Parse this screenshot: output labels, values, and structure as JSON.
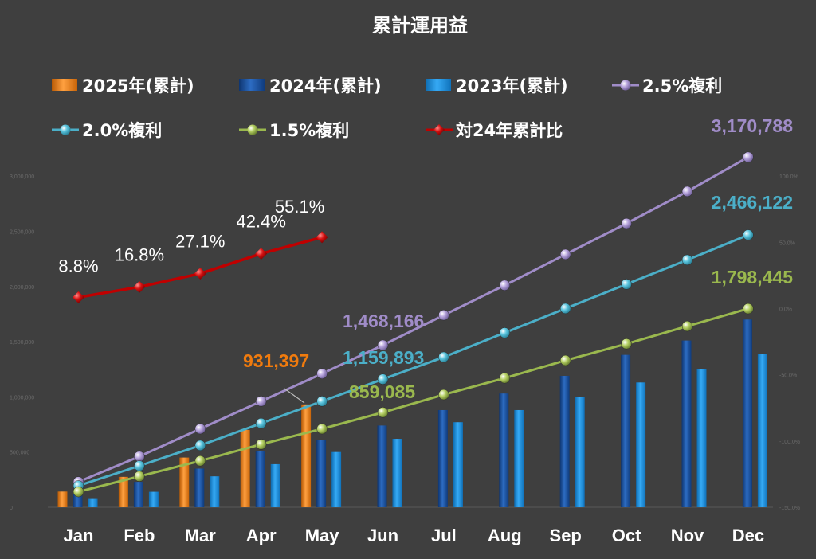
{
  "chart_data": {
    "type": "bar",
    "title": "累計運用益",
    "categories": [
      "Jan",
      "Feb",
      "Mar",
      "Apr",
      "May",
      "Jun",
      "Jul",
      "Aug",
      "Sep",
      "Oct",
      "Nov",
      "Dec"
    ],
    "legend_placement": "top",
    "grid": false,
    "ylim": [
      0,
      3000000
    ],
    "series": [
      {
        "name": "2025年(累計)",
        "kind": "bar",
        "color": "#f07b0e",
        "values": [
          142000,
          275000,
          450000,
          700000,
          931397,
          null,
          null,
          null,
          null,
          null,
          null,
          null
        ]
      },
      {
        "name": "2024年(累計)",
        "kind": "bar",
        "color": "#1b56a6",
        "values": [
          120000,
          230000,
          350000,
          510000,
          610000,
          740000,
          880000,
          1030000,
          1190000,
          1380000,
          1510000,
          1700000
        ]
      },
      {
        "name": "2023年(累計)",
        "kind": "bar",
        "color": "#1a8fe0",
        "values": [
          75000,
          140000,
          280000,
          390000,
          500000,
          620000,
          770000,
          880000,
          1000000,
          1130000,
          1250000,
          1390000
        ]
      },
      {
        "name": "2.5%複利",
        "kind": "line",
        "color": "#a08cc8",
        "values": [
          230000,
          460000,
          710000,
          960000,
          1210000,
          1468166,
          1740000,
          2010000,
          2290000,
          2570000,
          2860000,
          3170788
        ]
      },
      {
        "name": "2.0%複利",
        "kind": "line",
        "color": "#4bafc8",
        "values": [
          195000,
          375000,
          560000,
          760000,
          960000,
          1159893,
          1360000,
          1580000,
          1800000,
          2020000,
          2240000,
          2466122
        ]
      },
      {
        "name": "1.5%複利",
        "kind": "line",
        "color": "#9ab84e",
        "values": [
          140000,
          280000,
          420000,
          570000,
          710000,
          859085,
          1020000,
          1170000,
          1330000,
          1480000,
          1640000,
          1798445
        ]
      },
      {
        "name": "対24年累計比",
        "kind": "line",
        "axis": "secondary",
        "color": "#c00000",
        "values": [
          8.8,
          16.8,
          27.1,
          42.4,
          55.1,
          null,
          null,
          null,
          null,
          null,
          null,
          null
        ]
      }
    ],
    "ratio_labels": [
      "8.8%",
      "16.8%",
      "27.1%",
      "42.4%",
      "55.1%"
    ],
    "annotations": [
      {
        "text": "931,397",
        "series": "2025年(累計)",
        "month": "May",
        "color": "#f07b0e"
      },
      {
        "text": "1,468,166",
        "series": "2.5%複利",
        "month": "Jun",
        "color": "#a08cc8"
      },
      {
        "text": "1,159,893",
        "series": "2.0%複利",
        "month": "Jun",
        "color": "#4bafc8"
      },
      {
        "text": "859,085",
        "series": "1.5%複利",
        "month": "Jun",
        "color": "#9ab84e"
      },
      {
        "text": "3,170,788",
        "series": "2.5%複利",
        "month": "Dec",
        "color": "#a08cc8"
      },
      {
        "text": "2,466,122",
        "series": "2.0%複利",
        "month": "Dec",
        "color": "#4bafc8"
      },
      {
        "text": "1,798,445",
        "series": "1.5%複利",
        "month": "Dec",
        "color": "#9ab84e"
      }
    ],
    "y_tick_labels": [
      "0",
      "500,000",
      "1,000,000",
      "1,500,000",
      "2,000,000",
      "2,500,000",
      "3,000,000"
    ],
    "y2_tick_labels": [
      "-150.0%",
      "-100.0%",
      "-50.0%",
      "0.0%",
      "50.0%",
      "100.0%"
    ]
  }
}
